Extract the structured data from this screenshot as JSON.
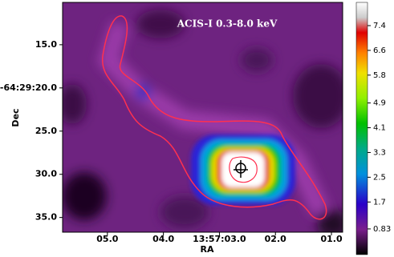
{
  "chart_data": {
    "type": "image",
    "title": "ACIS-I  0.3-8.0 keV",
    "x_label": "RA",
    "y_label": "Dec",
    "xlim": [
      5.8,
      0.8
    ],
    "xticks": [
      {
        "value": 5,
        "label": "05.0"
      },
      {
        "value": 4,
        "label": "04.0"
      },
      {
        "value": 3,
        "label": "13:57:03.0"
      },
      {
        "value": 2,
        "label": "02.0"
      },
      {
        "value": 1,
        "label": "01.0"
      }
    ],
    "ylim": [
      10.1,
      36.7
    ],
    "yticks": [
      {
        "value": 15,
        "label": "15.0"
      },
      {
        "value": 20,
        "label": "-64:29:20.0"
      },
      {
        "value": 25,
        "label": "25.0"
      },
      {
        "value": 30,
        "label": "30.0"
      },
      {
        "value": 35,
        "label": "35.0"
      }
    ],
    "clim": [
      0,
      8.15
    ],
    "cticks": [
      0.83,
      1.7,
      2.5,
      3.3,
      4.1,
      4.9,
      5.8,
      6.6,
      7.4
    ]
  }
}
